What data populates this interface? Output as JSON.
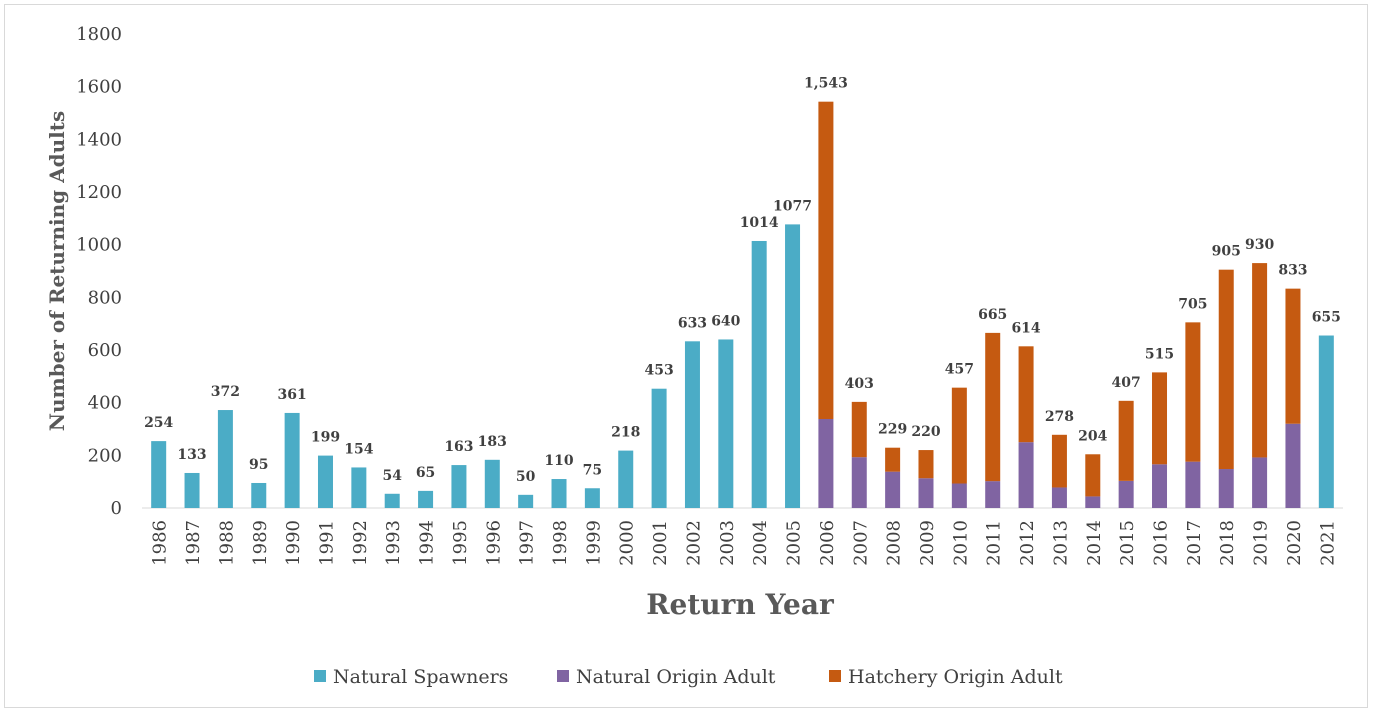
{
  "chart_data": {
    "type": "bar",
    "stacked": true,
    "xlabel": "Return Year",
    "ylabel": "Number of Returning Adults",
    "ylim": [
      0,
      1800
    ],
    "yticks": [
      0,
      200,
      400,
      600,
      800,
      1000,
      1200,
      1400,
      1600,
      1800
    ],
    "grid": false,
    "legend_position": "bottom",
    "categories": [
      "1986",
      "1987",
      "1988",
      "1989",
      "1990",
      "1991",
      "1992",
      "1993",
      "1994",
      "1995",
      "1996",
      "1997",
      "1998",
      "1999",
      "2000",
      "2001",
      "2002",
      "2003",
      "2004",
      "2005",
      "2006",
      "2007",
      "2008",
      "2009",
      "2010",
      "2011",
      "2012",
      "2013",
      "2014",
      "2015",
      "2016",
      "2017",
      "2018",
      "2019",
      "2020",
      "2021"
    ],
    "series": [
      {
        "name": "Natural Spawners",
        "color": "#4bacc6",
        "values": [
          254,
          133,
          372,
          95,
          361,
          199,
          154,
          54,
          65,
          163,
          183,
          50,
          110,
          75,
          218,
          453,
          633,
          640,
          1014,
          1077,
          0,
          0,
          0,
          0,
          0,
          0,
          0,
          0,
          0,
          0,
          0,
          0,
          0,
          0,
          0,
          655
        ]
      },
      {
        "name": "Natural Origin Adult",
        "color": "#8064a2",
        "values": [
          0,
          0,
          0,
          0,
          0,
          0,
          0,
          0,
          0,
          0,
          0,
          0,
          0,
          0,
          0,
          0,
          0,
          0,
          0,
          0,
          338,
          193,
          138,
          113,
          93,
          102,
          250,
          78,
          44,
          103,
          166,
          176,
          148,
          192,
          320,
          0
        ]
      },
      {
        "name": "Hatchery Origin Adult",
        "color": "#c55a11",
        "values": [
          0,
          0,
          0,
          0,
          0,
          0,
          0,
          0,
          0,
          0,
          0,
          0,
          0,
          0,
          0,
          0,
          0,
          0,
          0,
          0,
          1205,
          210,
          91,
          107,
          364,
          563,
          364,
          200,
          160,
          304,
          349,
          529,
          757,
          738,
          513,
          0
        ]
      }
    ],
    "data_labels": [
      "254",
      "133",
      "372",
      "95",
      "361",
      "199",
      "154",
      "54",
      "65",
      "163",
      "183",
      "50",
      "110",
      "75",
      "218",
      "453",
      "633",
      "640",
      "1014",
      "1077",
      "1,543",
      "403",
      "229",
      "220",
      "457",
      "665",
      "614",
      "278",
      "204",
      "407",
      "515",
      "705",
      "905",
      "930",
      "833",
      "655"
    ]
  }
}
